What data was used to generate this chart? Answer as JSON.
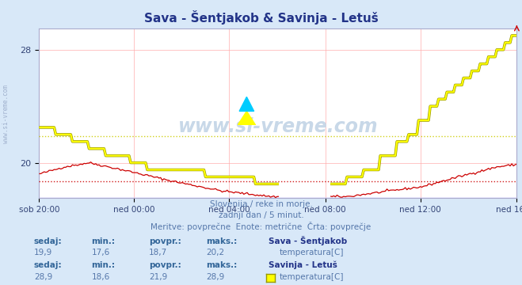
{
  "title": "Sava - Šentjakob & Savinja - Letuš",
  "background_color": "#d8e8f8",
  "plot_bg_color": "#ffffff",
  "grid_color": "#ffaaaa",
  "sava_color": "#cc0000",
  "savinja_color": "#ffff00",
  "savinja_border_color": "#999900",
  "avg_sava_color": "#cc0000",
  "avg_savinja_color": "#cccc00",
  "baseline_color": "#9999ff",
  "avg_sava": 18.7,
  "avg_savinja": 21.9,
  "y_min": 17.5,
  "y_max": 29.5,
  "y_ticks": [
    20,
    28
  ],
  "x_labels": [
    "sob 20:00",
    "ned 00:00",
    "ned 04:00",
    "ned 08:00",
    "ned 12:00",
    "ned 16:00"
  ],
  "subtitle1": "Slovenija / reke in morje.",
  "subtitle2": "zadnji dan / 5 minut.",
  "subtitle3": "Meritve: povprečne  Enote: metrične  Črta: povprečje",
  "label1_name": "Sava - Šentjakob",
  "label1_unit": "temperatura[C]",
  "label1_sedaj": "19,9",
  "label1_min": "17,6",
  "label1_povpr": "18,7",
  "label1_maks": "20,2",
  "label2_name": "Savinja - Letuš",
  "label2_unit": "temperatura[C]",
  "label2_sedaj": "28,9",
  "label2_min": "18,6",
  "label2_povpr": "21,9",
  "label2_maks": "28,9",
  "watermark": "www.si-vreme.com",
  "left_watermark": "www.si-vreme.com",
  "n_points": 288
}
